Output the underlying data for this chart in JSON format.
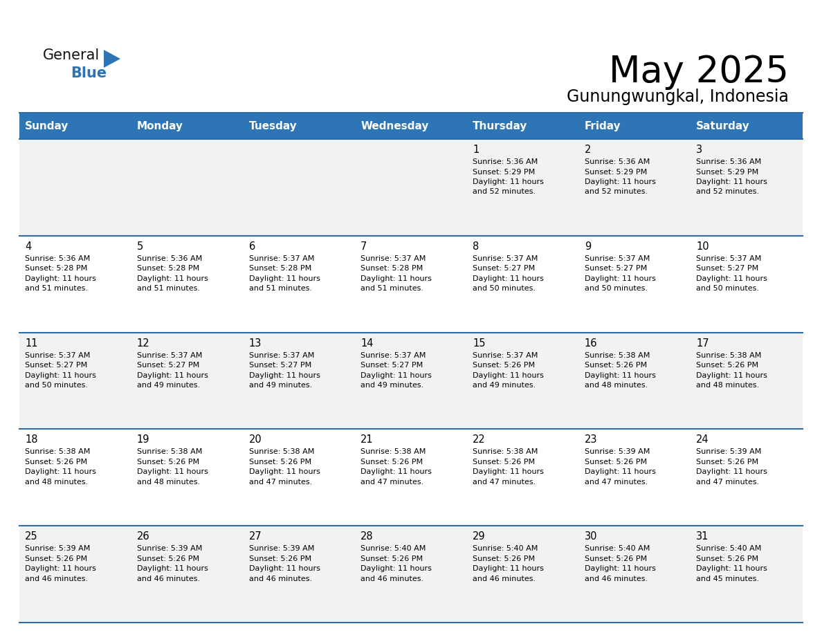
{
  "title": "May 2025",
  "subtitle": "Gunungwungkal, Indonesia",
  "days_of_week": [
    "Sunday",
    "Monday",
    "Tuesday",
    "Wednesday",
    "Thursday",
    "Friday",
    "Saturday"
  ],
  "header_bg": "#2E75B6",
  "header_text": "#FFFFFF",
  "cell_bg_odd": "#F2F2F2",
  "cell_bg_even": "#FFFFFF",
  "cell_text": "#000000",
  "line_color": "#2E6DA4",
  "title_color": "#000000",
  "subtitle_color": "#000000",
  "logo_general_color": "#111111",
  "logo_blue_color": "#2E75B6",
  "logo_triangle_color": "#2E75B6",
  "calendar": [
    [
      null,
      null,
      null,
      null,
      {
        "day": 1,
        "sunrise": "5:36 AM",
        "sunset": "5:29 PM",
        "daylight": "11 hours and 52 minutes."
      },
      {
        "day": 2,
        "sunrise": "5:36 AM",
        "sunset": "5:29 PM",
        "daylight": "11 hours and 52 minutes."
      },
      {
        "day": 3,
        "sunrise": "5:36 AM",
        "sunset": "5:29 PM",
        "daylight": "11 hours and 52 minutes."
      }
    ],
    [
      {
        "day": 4,
        "sunrise": "5:36 AM",
        "sunset": "5:28 PM",
        "daylight": "11 hours and 51 minutes."
      },
      {
        "day": 5,
        "sunrise": "5:36 AM",
        "sunset": "5:28 PM",
        "daylight": "11 hours and 51 minutes."
      },
      {
        "day": 6,
        "sunrise": "5:37 AM",
        "sunset": "5:28 PM",
        "daylight": "11 hours and 51 minutes."
      },
      {
        "day": 7,
        "sunrise": "5:37 AM",
        "sunset": "5:28 PM",
        "daylight": "11 hours and 51 minutes."
      },
      {
        "day": 8,
        "sunrise": "5:37 AM",
        "sunset": "5:27 PM",
        "daylight": "11 hours and 50 minutes."
      },
      {
        "day": 9,
        "sunrise": "5:37 AM",
        "sunset": "5:27 PM",
        "daylight": "11 hours and 50 minutes."
      },
      {
        "day": 10,
        "sunrise": "5:37 AM",
        "sunset": "5:27 PM",
        "daylight": "11 hours and 50 minutes."
      }
    ],
    [
      {
        "day": 11,
        "sunrise": "5:37 AM",
        "sunset": "5:27 PM",
        "daylight": "11 hours and 50 minutes."
      },
      {
        "day": 12,
        "sunrise": "5:37 AM",
        "sunset": "5:27 PM",
        "daylight": "11 hours and 49 minutes."
      },
      {
        "day": 13,
        "sunrise": "5:37 AM",
        "sunset": "5:27 PM",
        "daylight": "11 hours and 49 minutes."
      },
      {
        "day": 14,
        "sunrise": "5:37 AM",
        "sunset": "5:27 PM",
        "daylight": "11 hours and 49 minutes."
      },
      {
        "day": 15,
        "sunrise": "5:37 AM",
        "sunset": "5:26 PM",
        "daylight": "11 hours and 49 minutes."
      },
      {
        "day": 16,
        "sunrise": "5:38 AM",
        "sunset": "5:26 PM",
        "daylight": "11 hours and 48 minutes."
      },
      {
        "day": 17,
        "sunrise": "5:38 AM",
        "sunset": "5:26 PM",
        "daylight": "11 hours and 48 minutes."
      }
    ],
    [
      {
        "day": 18,
        "sunrise": "5:38 AM",
        "sunset": "5:26 PM",
        "daylight": "11 hours and 48 minutes."
      },
      {
        "day": 19,
        "sunrise": "5:38 AM",
        "sunset": "5:26 PM",
        "daylight": "11 hours and 48 minutes."
      },
      {
        "day": 20,
        "sunrise": "5:38 AM",
        "sunset": "5:26 PM",
        "daylight": "11 hours and 47 minutes."
      },
      {
        "day": 21,
        "sunrise": "5:38 AM",
        "sunset": "5:26 PM",
        "daylight": "11 hours and 47 minutes."
      },
      {
        "day": 22,
        "sunrise": "5:38 AM",
        "sunset": "5:26 PM",
        "daylight": "11 hours and 47 minutes."
      },
      {
        "day": 23,
        "sunrise": "5:39 AM",
        "sunset": "5:26 PM",
        "daylight": "11 hours and 47 minutes."
      },
      {
        "day": 24,
        "sunrise": "5:39 AM",
        "sunset": "5:26 PM",
        "daylight": "11 hours and 47 minutes."
      }
    ],
    [
      {
        "day": 25,
        "sunrise": "5:39 AM",
        "sunset": "5:26 PM",
        "daylight": "11 hours and 46 minutes."
      },
      {
        "day": 26,
        "sunrise": "5:39 AM",
        "sunset": "5:26 PM",
        "daylight": "11 hours and 46 minutes."
      },
      {
        "day": 27,
        "sunrise": "5:39 AM",
        "sunset": "5:26 PM",
        "daylight": "11 hours and 46 minutes."
      },
      {
        "day": 28,
        "sunrise": "5:40 AM",
        "sunset": "5:26 PM",
        "daylight": "11 hours and 46 minutes."
      },
      {
        "day": 29,
        "sunrise": "5:40 AM",
        "sunset": "5:26 PM",
        "daylight": "11 hours and 46 minutes."
      },
      {
        "day": 30,
        "sunrise": "5:40 AM",
        "sunset": "5:26 PM",
        "daylight": "11 hours and 46 minutes."
      },
      {
        "day": 31,
        "sunrise": "5:40 AM",
        "sunset": "5:26 PM",
        "daylight": "11 hours and 45 minutes."
      }
    ]
  ]
}
